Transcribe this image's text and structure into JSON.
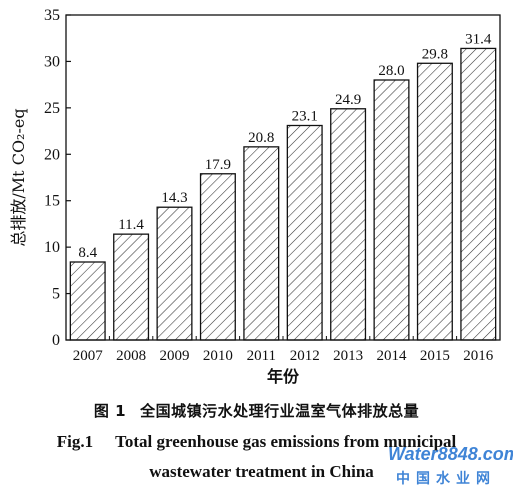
{
  "chart_data": {
    "type": "bar",
    "categories": [
      "2007",
      "2008",
      "2009",
      "2010",
      "2011",
      "2012",
      "2013",
      "2014",
      "2015",
      "2016"
    ],
    "values": [
      8.4,
      11.4,
      14.3,
      17.9,
      20.8,
      23.1,
      24.9,
      28.0,
      29.8,
      31.4
    ],
    "value_labels": [
      "8.4",
      "11.4",
      "14.3",
      "17.9",
      "20.8",
      "23.1",
      "24.9",
      "28.0",
      "29.8",
      "31.4"
    ],
    "yticks": [
      "0",
      "5",
      "10",
      "15",
      "20",
      "25",
      "30",
      "35"
    ],
    "ylim": [
      0,
      35
    ],
    "ylabel": "总排放/Mt CO₂-eq",
    "xlabel": "年份",
    "grid": false,
    "bar_fill": "diagonal hatch",
    "colors": {
      "bar_stroke": "#111111",
      "hatch": "#333333"
    }
  },
  "caption": {
    "cn_fig": "图 1",
    "cn_text": "全国城镇污水处理行业温室气体排放总量",
    "en_fig": "Fig.1",
    "en_line1": "Total greenhouse gas emissions from municipal",
    "en_line2": "wastewater treatment in China"
  },
  "watermark": {
    "logo": "Water8848.com",
    "site": "中国水业网",
    "colors": {
      "text": "#1e6fd0"
    }
  }
}
